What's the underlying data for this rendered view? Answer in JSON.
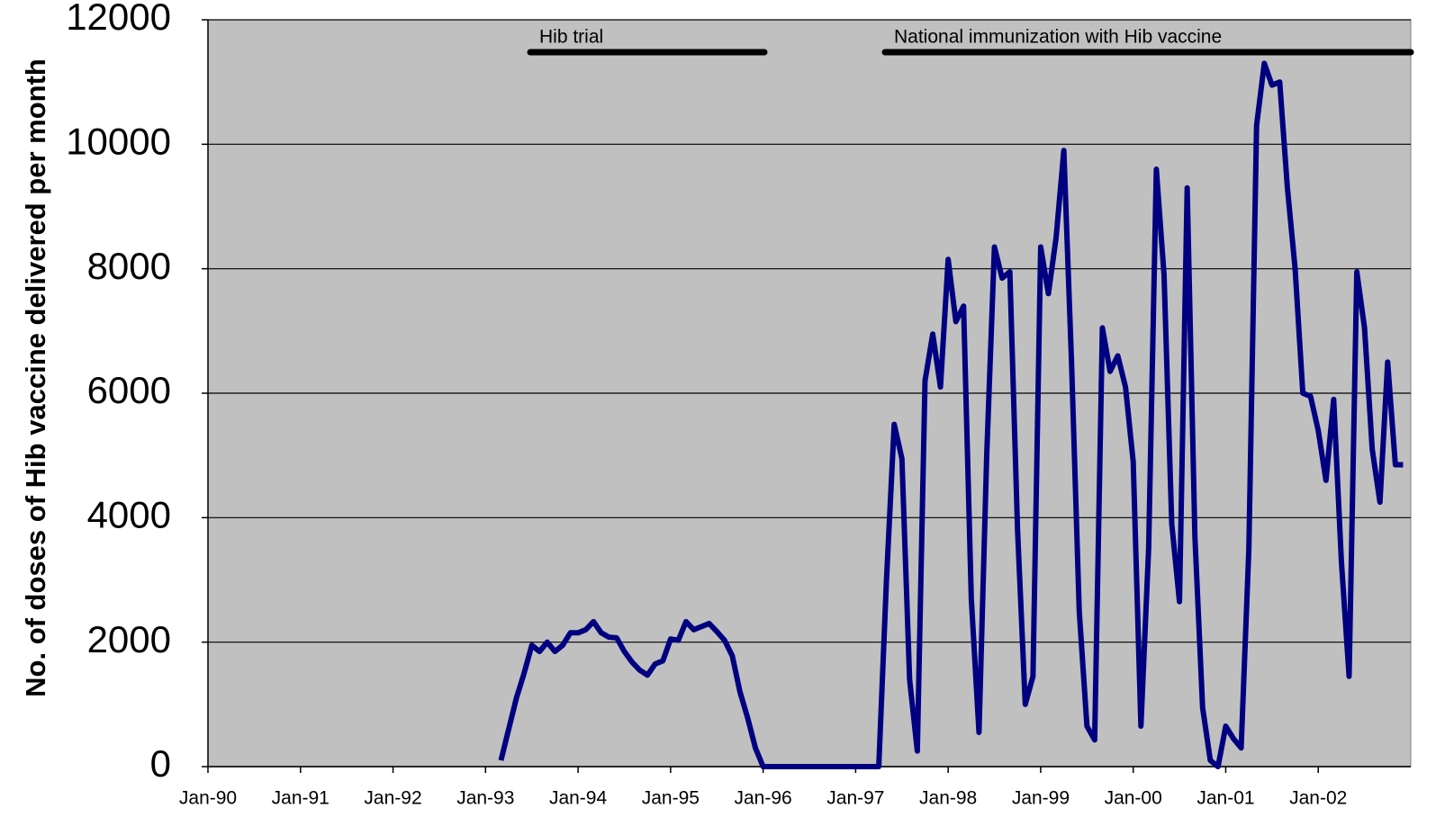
{
  "chart_data": {
    "type": "line",
    "y_label": "No. of doses of Hib vaccine delivered per month",
    "annotations": [
      {
        "text": "Hib trial"
      },
      {
        "text": "National immunization with Hib vaccine"
      }
    ],
    "categories": [
      "Jan-90",
      null,
      null,
      null,
      null,
      null,
      null,
      null,
      null,
      null,
      null,
      null,
      "Jan-91",
      null,
      null,
      null,
      null,
      null,
      null,
      null,
      null,
      null,
      null,
      null,
      "Jan-92",
      null,
      null,
      null,
      null,
      null,
      null,
      null,
      null,
      null,
      null,
      null,
      "Jan-93",
      null,
      null,
      null,
      null,
      null,
      null,
      null,
      null,
      null,
      null,
      null,
      "Jan-94",
      null,
      null,
      null,
      null,
      null,
      null,
      null,
      null,
      null,
      null,
      null,
      "Jan-95",
      null,
      null,
      null,
      null,
      null,
      null,
      null,
      null,
      null,
      null,
      null,
      "Jan-96",
      null,
      null,
      null,
      null,
      null,
      null,
      null,
      null,
      null,
      null,
      null,
      "Jan-97",
      null,
      null,
      null,
      null,
      null,
      null,
      null,
      null,
      null,
      null,
      null,
      "Jan-98",
      null,
      null,
      null,
      null,
      null,
      null,
      null,
      null,
      null,
      null,
      null,
      "Jan-99",
      null,
      null,
      null,
      null,
      null,
      null,
      null,
      null,
      null,
      null,
      null,
      "Jan-00",
      null,
      null,
      null,
      null,
      null,
      null,
      null,
      null,
      null,
      null,
      null,
      "Jan-01",
      null,
      null,
      null,
      null,
      null,
      null,
      null,
      null,
      null,
      null,
      null,
      "Jan-02",
      null,
      null,
      null,
      null,
      null,
      null,
      null,
      null,
      null,
      null,
      null
    ],
    "series": [
      {
        "color": "#000080",
        "values": [
          null,
          null,
          null,
          null,
          null,
          null,
          null,
          null,
          null,
          null,
          null,
          null,
          null,
          null,
          null,
          null,
          null,
          null,
          null,
          null,
          null,
          null,
          null,
          null,
          null,
          null,
          null,
          null,
          null,
          null,
          null,
          null,
          null,
          null,
          null,
          null,
          null,
          null,
          100,
          600,
          1100,
          1500,
          1950,
          1850,
          2000,
          1850,
          1950,
          2150,
          2150,
          2200,
          2330,
          2150,
          2080,
          2070,
          1850,
          1680,
          1550,
          1470,
          1650,
          1700,
          2050,
          2030,
          2330,
          2200,
          2250,
          2300,
          2170,
          2030,
          1780,
          1200,
          780,
          300,
          0,
          0,
          0,
          0,
          0,
          0,
          0,
          0,
          0,
          0,
          0,
          0,
          0,
          0,
          0,
          0,
          3000,
          5500,
          4950,
          1400,
          250,
          6200,
          6950,
          6100,
          8150,
          7150,
          7400,
          2700,
          550,
          5000,
          8350,
          7850,
          7950,
          3800,
          1000,
          1450,
          8350,
          7600,
          8500,
          9900,
          6500,
          2500,
          650,
          430,
          7050,
          6350,
          6600,
          6100,
          4900,
          650,
          3500,
          9600,
          7900,
          3900,
          2650,
          9300,
          3700,
          950,
          100,
          0,
          650,
          450,
          300,
          3500,
          10300,
          11300,
          10950,
          11000,
          9300,
          8000,
          6000,
          5950,
          5400,
          4600,
          5900,
          3300,
          1450,
          7950,
          7050,
          5100,
          4250,
          6500,
          4850,
          4850
        ]
      }
    ],
    "ylim": [
      0,
      12000
    ],
    "yticks": [
      0,
      2000,
      4000,
      6000,
      8000,
      10000,
      12000
    ],
    "grid": true
  }
}
